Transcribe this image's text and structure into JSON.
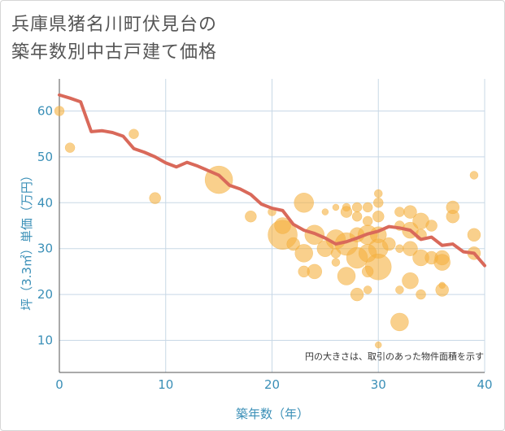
{
  "title_line1": "兵庫県猪名川町伏見台の",
  "title_line2": "築年数別中古戸建て価格",
  "chart_data": {
    "type": "scatter",
    "xlabel": "築年数（年）",
    "ylabel": "坪（3.3㎡）単価（万円）",
    "xlim": [
      0,
      40
    ],
    "ylim": [
      3,
      67
    ],
    "x_ticks": [
      0,
      10,
      20,
      30,
      40
    ],
    "y_ticks": [
      10,
      20,
      30,
      40,
      50,
      60
    ],
    "grid": true,
    "note": "円の大きさは、取引のあった物件面積を示す",
    "colors": {
      "bubble": "#f5b040",
      "line": "#d9695a",
      "grid": "#c8d8e6",
      "text": "#3a8fb7"
    },
    "bubbles": [
      {
        "x": 0,
        "y": 60,
        "s": 6
      },
      {
        "x": 1,
        "y": 52,
        "s": 6
      },
      {
        "x": 7,
        "y": 55,
        "s": 6
      },
      {
        "x": 9,
        "y": 41,
        "s": 7
      },
      {
        "x": 15,
        "y": 45,
        "s": 17
      },
      {
        "x": 18,
        "y": 37,
        "s": 7
      },
      {
        "x": 20,
        "y": 38,
        "s": 5
      },
      {
        "x": 21,
        "y": 33,
        "s": 18
      },
      {
        "x": 21,
        "y": 35,
        "s": 10
      },
      {
        "x": 22,
        "y": 31,
        "s": 8
      },
      {
        "x": 23,
        "y": 40,
        "s": 12
      },
      {
        "x": 23,
        "y": 29,
        "s": 11
      },
      {
        "x": 23,
        "y": 25,
        "s": 7
      },
      {
        "x": 24,
        "y": 33,
        "s": 12
      },
      {
        "x": 24,
        "y": 25,
        "s": 9
      },
      {
        "x": 25,
        "y": 38,
        "s": 4
      },
      {
        "x": 25,
        "y": 30,
        "s": 10
      },
      {
        "x": 26,
        "y": 39,
        "s": 4
      },
      {
        "x": 26,
        "y": 32,
        "s": 12
      },
      {
        "x": 26,
        "y": 29,
        "s": 6
      },
      {
        "x": 26,
        "y": 27,
        "s": 5
      },
      {
        "x": 27,
        "y": 39,
        "s": 5
      },
      {
        "x": 27,
        "y": 38,
        "s": 7
      },
      {
        "x": 27,
        "y": 31,
        "s": 14
      },
      {
        "x": 27,
        "y": 24,
        "s": 11
      },
      {
        "x": 28,
        "y": 39,
        "s": 6
      },
      {
        "x": 28,
        "y": 37,
        "s": 6
      },
      {
        "x": 28,
        "y": 33,
        "s": 9
      },
      {
        "x": 28,
        "y": 28,
        "s": 13
      },
      {
        "x": 28,
        "y": 20,
        "s": 8
      },
      {
        "x": 29,
        "y": 39,
        "s": 6
      },
      {
        "x": 29,
        "y": 36,
        "s": 6
      },
      {
        "x": 29,
        "y": 33,
        "s": 12
      },
      {
        "x": 29,
        "y": 29,
        "s": 11
      },
      {
        "x": 29,
        "y": 25,
        "s": 7
      },
      {
        "x": 29,
        "y": 21,
        "s": 5
      },
      {
        "x": 30,
        "y": 42,
        "s": 5
      },
      {
        "x": 30,
        "y": 40,
        "s": 6
      },
      {
        "x": 30,
        "y": 37,
        "s": 7
      },
      {
        "x": 30,
        "y": 33,
        "s": 10
      },
      {
        "x": 30,
        "y": 30,
        "s": 12
      },
      {
        "x": 30,
        "y": 26,
        "s": 16
      },
      {
        "x": 30,
        "y": 9,
        "s": 4
      },
      {
        "x": 31,
        "y": 31,
        "s": 8
      },
      {
        "x": 32,
        "y": 38,
        "s": 6
      },
      {
        "x": 32,
        "y": 35,
        "s": 6
      },
      {
        "x": 32,
        "y": 30,
        "s": 5
      },
      {
        "x": 32,
        "y": 21,
        "s": 5
      },
      {
        "x": 32,
        "y": 14,
        "s": 11
      },
      {
        "x": 33,
        "y": 38,
        "s": 8
      },
      {
        "x": 33,
        "y": 34,
        "s": 10
      },
      {
        "x": 33,
        "y": 30,
        "s": 9
      },
      {
        "x": 33,
        "y": 23,
        "s": 10
      },
      {
        "x": 34,
        "y": 36,
        "s": 10
      },
      {
        "x": 34,
        "y": 33,
        "s": 7
      },
      {
        "x": 34,
        "y": 28,
        "s": 10
      },
      {
        "x": 34,
        "y": 20,
        "s": 6
      },
      {
        "x": 35,
        "y": 35,
        "s": 7
      },
      {
        "x": 35,
        "y": 28,
        "s": 8
      },
      {
        "x": 36,
        "y": 28,
        "s": 9
      },
      {
        "x": 36,
        "y": 27,
        "s": 10
      },
      {
        "x": 36,
        "y": 22,
        "s": 4
      },
      {
        "x": 36,
        "y": 21,
        "s": 8
      },
      {
        "x": 37,
        "y": 39,
        "s": 8
      },
      {
        "x": 37,
        "y": 37,
        "s": 8
      },
      {
        "x": 39,
        "y": 46,
        "s": 5
      },
      {
        "x": 39,
        "y": 33,
        "s": 8
      },
      {
        "x": 39,
        "y": 29,
        "s": 8
      }
    ],
    "trend": {
      "x": [
        0,
        1,
        2,
        3,
        4,
        5,
        6,
        7,
        8,
        9,
        10,
        11,
        12,
        13,
        14,
        15,
        16,
        17,
        18,
        19,
        20,
        21,
        22,
        23,
        24,
        25,
        26,
        27,
        28,
        29,
        30,
        31,
        32,
        33,
        34,
        35,
        36,
        37,
        38,
        39,
        40
      ],
      "y": [
        63.5,
        62.8,
        62,
        55.5,
        55.7,
        55.3,
        54.5,
        51.8,
        51,
        50,
        48.7,
        47.8,
        48.8,
        48,
        47,
        46,
        43.8,
        43,
        41.8,
        39.7,
        38.8,
        38.3,
        35.3,
        34,
        33.3,
        32.3,
        31,
        31.5,
        32.3,
        33.2,
        33.8,
        34.8,
        34.5,
        34,
        32,
        32.5,
        30.7,
        31,
        29.3,
        29,
        26.3
      ]
    }
  }
}
